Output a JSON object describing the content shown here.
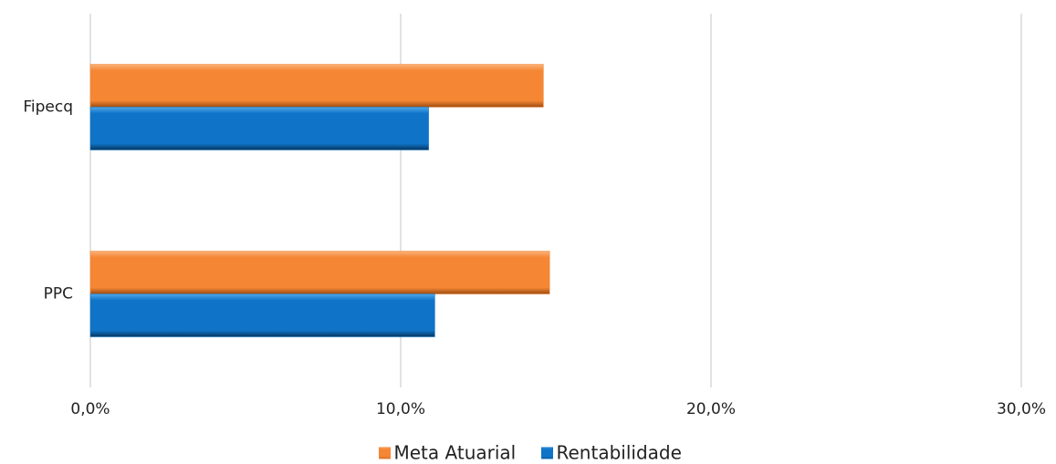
{
  "chart_data": {
    "type": "hbar",
    "categories": [
      "Fipecq",
      "PPC"
    ],
    "series": [
      {
        "name": "Meta Atuarial",
        "color": "#f58634",
        "values": [
          14.6,
          14.8
        ]
      },
      {
        "name": "Rentabilidade",
        "color": "#0f74c8",
        "values": [
          10.9,
          11.1
        ]
      }
    ],
    "xlim": [
      0,
      30
    ],
    "xticks": [
      {
        "value": 0,
        "label": "0,0%"
      },
      {
        "value": 10,
        "label": "10,0%"
      },
      {
        "value": 20,
        "label": "20,0%"
      },
      {
        "value": 30,
        "label": "30,0%"
      }
    ],
    "grid": true,
    "legend": "bottom"
  }
}
